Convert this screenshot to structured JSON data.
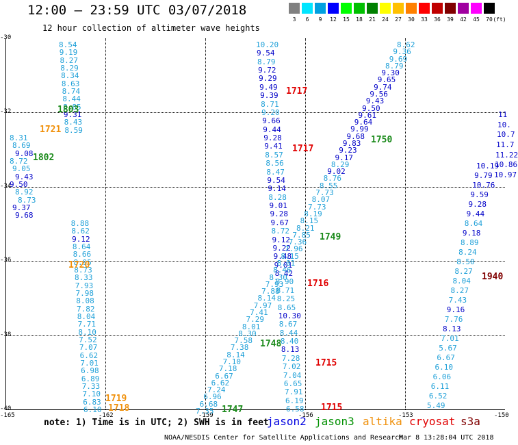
{
  "title": "12:00 – 23:59 UTC 03/07/2018",
  "subtitle": "12 hour collection of altimeter wave heights",
  "color_scale": {
    "unit": "(ft)",
    "bins": [
      {
        "label": "3",
        "color": "#808080"
      },
      {
        "label": "6",
        "color": "#00e5ff"
      },
      {
        "label": "9",
        "color": "#00a0e0"
      },
      {
        "label": "12",
        "color": "#0000ff"
      },
      {
        "label": "15",
        "color": "#00ff00"
      },
      {
        "label": "18",
        "color": "#00c000"
      },
      {
        "label": "21",
        "color": "#008000"
      },
      {
        "label": "24",
        "color": "#ffff00"
      },
      {
        "label": "27",
        "color": "#ffc000"
      },
      {
        "label": "30",
        "color": "#ff8000"
      },
      {
        "label": "33",
        "color": "#ff0000"
      },
      {
        "label": "36",
        "color": "#c00000"
      },
      {
        "label": "39",
        "color": "#800000"
      },
      {
        "label": "42",
        "color": "#a000a0"
      },
      {
        "label": "45",
        "color": "#ff00ff"
      },
      {
        "label": "70",
        "color": "#000000"
      }
    ]
  },
  "map": {
    "lon_min": -165,
    "lon_max": -150,
    "lat_min": -40,
    "lat_max": -30,
    "lon_ticks": [
      "-165",
      "-162",
      "-159",
      "-156",
      "-153",
      "-150"
    ],
    "lat_ticks": [
      "-30",
      "-32",
      "-34",
      "-36",
      "-38",
      "-40"
    ]
  },
  "tracks": [
    {
      "color": "#1fa0d8",
      "points": [
        {
          "v": "8.54"
        },
        {
          "v": "9.19"
        },
        {
          "v": "8.27"
        },
        {
          "v": "8.29"
        },
        {
          "v": "8.34"
        },
        {
          "v": "8.63"
        },
        {
          "v": "8.74"
        },
        {
          "v": "8.44"
        },
        {
          "v": "8.85"
        },
        {
          "v": "9.31"
        },
        {
          "v": "8.43"
        },
        {
          "v": "8.59"
        },
        {
          "v": "8.31"
        },
        {
          "v": "8.69"
        },
        {
          "v": "9.08"
        },
        {
          "v": "8.72"
        },
        {
          "v": "9.05"
        },
        {
          "v": "9.43"
        },
        {
          "v": "9.50"
        },
        {
          "v": "8.92"
        },
        {
          "v": "8.73"
        },
        {
          "v": "9.37"
        },
        {
          "v": "9.68"
        },
        {
          "v": "8.88"
        },
        {
          "v": "8.62"
        },
        {
          "v": "9.12"
        },
        {
          "v": "8.64"
        },
        {
          "v": "8.66"
        },
        {
          "v": "8.95"
        },
        {
          "v": "8.73"
        },
        {
          "v": "8.33"
        },
        {
          "v": "7.93"
        },
        {
          "v": "7.98"
        },
        {
          "v": "8.08"
        },
        {
          "v": "7.82"
        },
        {
          "v": "8.04"
        },
        {
          "v": "7.71"
        },
        {
          "v": "8.10"
        },
        {
          "v": "7.52"
        },
        {
          "v": "7.07"
        },
        {
          "v": "6.62"
        },
        {
          "v": "7.01"
        },
        {
          "v": "6.98"
        },
        {
          "v": "6.89"
        },
        {
          "v": "7.33"
        },
        {
          "v": "7.10"
        },
        {
          "v": "6.83"
        },
        {
          "v": "6.10"
        }
      ]
    },
    {
      "color": "#1fa0d8",
      "points": [
        {
          "v": "10.20"
        },
        {
          "v": "9.54"
        },
        {
          "v": "8.79"
        },
        {
          "v": "9.72"
        },
        {
          "v": "9.29"
        },
        {
          "v": "9.49"
        },
        {
          "v": "9.39"
        },
        {
          "v": "8.71"
        },
        {
          "v": "9.20"
        },
        {
          "v": "9.66"
        },
        {
          "v": "9.44"
        },
        {
          "v": "9.28"
        },
        {
          "v": "9.41"
        },
        {
          "v": "8.57"
        },
        {
          "v": "8.56"
        },
        {
          "v": "8.47"
        },
        {
          "v": "9.54"
        },
        {
          "v": "9.14"
        },
        {
          "v": "8.28"
        },
        {
          "v": "9.01"
        },
        {
          "v": "9.28"
        },
        {
          "v": "9.67"
        },
        {
          "v": "8.72"
        },
        {
          "v": "9.12"
        },
        {
          "v": "9.22"
        },
        {
          "v": "9.48"
        },
        {
          "v": "9.01"
        },
        {
          "v": "8.42"
        },
        {
          "v": "8.90"
        },
        {
          "v": "8.71"
        },
        {
          "v": "8.25"
        },
        {
          "v": "8.65"
        },
        {
          "v": "10.30"
        },
        {
          "v": "8.67"
        },
        {
          "v": "8.44"
        },
        {
          "v": "8.40"
        },
        {
          "v": "8.13"
        },
        {
          "v": "7.28"
        },
        {
          "v": "7.02"
        },
        {
          "v": "7.04"
        },
        {
          "v": "6.65"
        },
        {
          "v": "7.91"
        },
        {
          "v": "6.19"
        },
        {
          "v": "6.58"
        }
      ]
    },
    {
      "color": "#1fa0d8",
      "points": [
        {
          "v": "8.62"
        },
        {
          "v": "9.36"
        },
        {
          "v": "9.69"
        },
        {
          "v": "8.79"
        },
        {
          "v": "9.30"
        },
        {
          "v": "9.65"
        },
        {
          "v": "9.74"
        },
        {
          "v": "9.56"
        },
        {
          "v": "9.43"
        },
        {
          "v": "9.50"
        },
        {
          "v": "9.61"
        },
        {
          "v": "9.64"
        },
        {
          "v": "9.99"
        },
        {
          "v": "9.68"
        },
        {
          "v": "9.83"
        },
        {
          "v": "9.23"
        },
        {
          "v": "9.17"
        },
        {
          "v": "8.29"
        },
        {
          "v": "9.02"
        },
        {
          "v": "8.76"
        },
        {
          "v": "8.55"
        },
        {
          "v": "7.73"
        },
        {
          "v": "8.07"
        },
        {
          "v": "7.73"
        },
        {
          "v": "8.19"
        },
        {
          "v": "8.15"
        },
        {
          "v": "8.21"
        },
        {
          "v": "7.85"
        },
        {
          "v": "7.36"
        },
        {
          "v": "7.96"
        },
        {
          "v": "8.15"
        },
        {
          "v": "8.01"
        },
        {
          "v": "8.46"
        },
        {
          "v": "8.30"
        },
        {
          "v": "7.93"
        },
        {
          "v": "7.88"
        },
        {
          "v": "8.14"
        },
        {
          "v": "7.97"
        },
        {
          "v": "7.41"
        },
        {
          "v": "7.29"
        },
        {
          "v": "8.01"
        },
        {
          "v": "8.30"
        },
        {
          "v": "7.58"
        },
        {
          "v": "7.38"
        },
        {
          "v": "8.14"
        },
        {
          "v": "7.10"
        },
        {
          "v": "7.18"
        },
        {
          "v": "6.67"
        },
        {
          "v": "6.62"
        },
        {
          "v": "7.24"
        },
        {
          "v": "6.96"
        },
        {
          "v": "6.68"
        },
        {
          "v": "7.35"
        }
      ]
    },
    {
      "color": "#1fa0d8",
      "points": [
        {
          "v": "10.19"
        },
        {
          "v": "9.79"
        },
        {
          "v": "10.76"
        },
        {
          "v": "9.59"
        },
        {
          "v": "9.28"
        },
        {
          "v": "9.44"
        },
        {
          "v": "8.64"
        },
        {
          "v": "9.18"
        },
        {
          "v": "8.89"
        },
        {
          "v": "8.24"
        },
        {
          "v": "8.50"
        },
        {
          "v": "8.27"
        },
        {
          "v": "8.04"
        },
        {
          "v": "8.27"
        },
        {
          "v": "7.43"
        },
        {
          "v": "9.16"
        },
        {
          "v": "7.76"
        },
        {
          "v": "8.13"
        },
        {
          "v": "7.01"
        },
        {
          "v": "5.67"
        },
        {
          "v": "6.67"
        },
        {
          "v": "6.10"
        },
        {
          "v": "6.06"
        },
        {
          "v": "6.11"
        },
        {
          "v": "6.52"
        },
        {
          "v": "5.49"
        }
      ]
    },
    {
      "color": "#1fa0d8",
      "points": [
        {
          "v": "11"
        },
        {
          "v": "10."
        },
        {
          "v": "10.7"
        },
        {
          "v": "11.7"
        },
        {
          "v": "11.22"
        },
        {
          "v": "10.86"
        },
        {
          "v": "10.97"
        }
      ]
    }
  ],
  "time_labels": [
    {
      "text": "1803",
      "color": "#1a8a1a"
    },
    {
      "text": "1721",
      "color": "#f0900a"
    },
    {
      "text": "1802",
      "color": "#1a8a1a"
    },
    {
      "text": "1720",
      "color": "#f0900a"
    },
    {
      "text": "1719",
      "color": "#f0900a"
    },
    {
      "text": "1718",
      "color": "#f0900a"
    },
    {
      "text": "1717",
      "color": "#e00000"
    },
    {
      "text": "1717",
      "color": "#e00000"
    },
    {
      "text": "1750",
      "color": "#1a8a1a"
    },
    {
      "text": "1749",
      "color": "#1a8a1a"
    },
    {
      "text": "1716",
      "color": "#e00000"
    },
    {
      "text": "1748",
      "color": "#1a8a1a"
    },
    {
      "text": "1715",
      "color": "#e00000"
    },
    {
      "text": "1715",
      "color": "#e00000"
    },
    {
      "text": "1747",
      "color": "#1a8a1a"
    },
    {
      "text": "1940",
      "color": "#800000"
    }
  ],
  "note": "note: 1) Time is in UTC; 2) SWH is in feet",
  "legend": [
    {
      "name": "jason2",
      "color": "#0000e0"
    },
    {
      "name": "jason3",
      "color": "#009000"
    },
    {
      "name": "altika",
      "color": "#f0900a"
    },
    {
      "name": "cryosat",
      "color": "#e00000"
    },
    {
      "name": "s3a",
      "color": "#800000"
    }
  ],
  "footer_left": "NOAA/NESDIS Center for Satellite Applications and Research",
  "footer_right": "Mar  8 13:28:04 UTC 2018"
}
